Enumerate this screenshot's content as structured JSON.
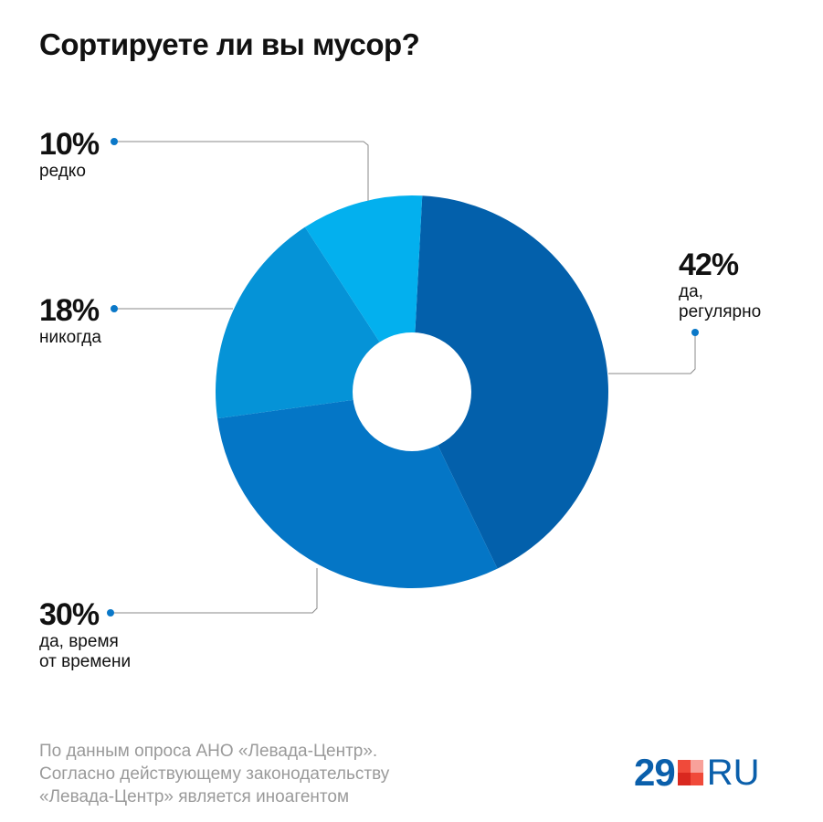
{
  "chart_data": {
    "type": "pie",
    "title": "Сортируете ли вы мусор?",
    "donut": true,
    "slices": [
      {
        "label_lines": [
          "да,",
          "регулярно"
        ],
        "value": 42,
        "display": "42%",
        "color": "#0360ab"
      },
      {
        "label_lines": [
          "да, время",
          "от времени"
        ],
        "value": 30,
        "display": "30%",
        "color": "#0476c6"
      },
      {
        "label_lines": [
          "никогда"
        ],
        "value": 18,
        "display": "18%",
        "color": "#0593d7"
      },
      {
        "label_lines": [
          "редко"
        ],
        "value": 10,
        "display": "10%",
        "color": "#03b0ee"
      }
    ]
  },
  "footer": {
    "lines": [
      "По данным опроса АНО «Левада-Центр».",
      "Согласно действующему законодательству",
      "«Левада-Центр» является иноагентом"
    ]
  },
  "logo": {
    "number": "29",
    "suffix": "RU",
    "colors": [
      "#f04a3a",
      "#f8a19a",
      "#d9281f",
      "#f04a3a"
    ]
  }
}
